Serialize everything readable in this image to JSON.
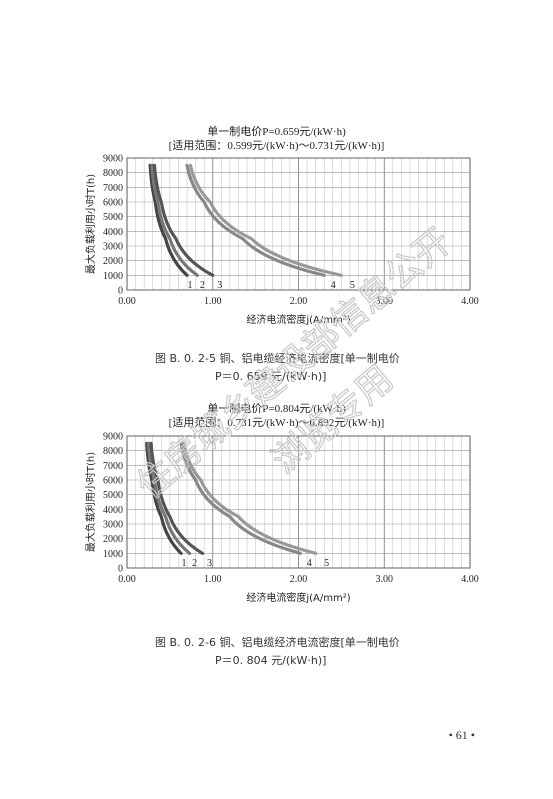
{
  "charts": [
    {
      "title_line1": "单一制电价P=0.659元/(kW·h)",
      "title_line2": "[适用范围：0.599元/(kW·h)～0.731元/(kW·h)]",
      "caption_line1": "图 B. 0. 2-5   铜、铝电缆经济电流密度[单一制电价",
      "caption_line2": "P＝0. 659 元/(kW·h)]"
    },
    {
      "title_line1": "单一制电价P=0.804元/(kW·h)",
      "title_line2": "[适用范围：0.731元/(kW·h)～0.892元/(kW·h)]",
      "caption_line1": "图 B. 0. 2-6   铜、铝电缆经济电流密度[单一制电价",
      "caption_line2": "P＝0. 804 元/(kW·h)]"
    }
  ],
  "chart_data": [
    {
      "type": "line",
      "title": "单一制电价P=0.659元/(kW·h)",
      "subtitle": "[适用范围：0.599元/(kW·h)～0.731元/(kW·h)]",
      "xlabel": "经济电流密度j(A/mm²)",
      "ylabel": "最大负载利用小时T(h)",
      "xlim": [
        0,
        4
      ],
      "ylim": [
        0,
        9000
      ],
      "x_ticks": [
        "0.00",
        "1.00",
        "2.00",
        "3.00",
        "4.00"
      ],
      "y_ticks": [
        "0",
        "1000",
        "2000",
        "3000",
        "4000",
        "5000",
        "6000",
        "7000",
        "8000",
        "9000"
      ],
      "grid": true,
      "series": [
        {
          "name": "1",
          "color": "#444444",
          "x": [
            0.27,
            0.33,
            0.45,
            0.7
          ],
          "y": [
            8500,
            6000,
            3500,
            1000
          ]
        },
        {
          "name": "2",
          "color": "#777777",
          "x": [
            0.29,
            0.36,
            0.5,
            0.82
          ],
          "y": [
            8500,
            6000,
            3500,
            1000
          ]
        },
        {
          "name": "3",
          "color": "#555555",
          "x": [
            0.32,
            0.4,
            0.57,
            1.0
          ],
          "y": [
            8500,
            6000,
            3500,
            1000
          ]
        },
        {
          "name": "4",
          "color": "#888888",
          "x": [
            0.7,
            0.9,
            1.35,
            2.3
          ],
          "y": [
            8500,
            6000,
            3500,
            1000
          ]
        },
        {
          "name": "5",
          "color": "#999999",
          "x": [
            0.74,
            0.97,
            1.45,
            2.5
          ],
          "y": [
            8500,
            6000,
            3500,
            1000
          ]
        }
      ]
    },
    {
      "type": "line",
      "title": "单一制电价P=0.804元/(kW·h)",
      "subtitle": "[适用范围：0.731元/(kW·h)～0.892元/(kW·h)]",
      "xlabel": "经济电流密度j(A/mm²)",
      "ylabel": "最大负载利用小时T(h)",
      "xlim": [
        0,
        4
      ],
      "ylim": [
        0,
        9000
      ],
      "x_ticks": [
        "0.00",
        "1.00",
        "2.00",
        "3.00",
        "4.00"
      ],
      "y_ticks": [
        "0",
        "1000",
        "2000",
        "3000",
        "4000",
        "5000",
        "6000",
        "7000",
        "8000",
        "9000"
      ],
      "grid": true,
      "series": [
        {
          "name": "1",
          "color": "#444444",
          "x": [
            0.23,
            0.29,
            0.4,
            0.63
          ],
          "y": [
            8500,
            6000,
            3500,
            1000
          ]
        },
        {
          "name": "2",
          "color": "#777777",
          "x": [
            0.25,
            0.32,
            0.45,
            0.73
          ],
          "y": [
            8500,
            6000,
            3500,
            1000
          ]
        },
        {
          "name": "3",
          "color": "#555555",
          "x": [
            0.28,
            0.36,
            0.5,
            0.88
          ],
          "y": [
            8500,
            6000,
            3500,
            1000
          ]
        },
        {
          "name": "4",
          "color": "#888888",
          "x": [
            0.63,
            0.8,
            1.2,
            2.02
          ],
          "y": [
            8500,
            6000,
            3500,
            1000
          ]
        },
        {
          "name": "5",
          "color": "#999999",
          "x": [
            0.66,
            0.86,
            1.3,
            2.2
          ],
          "y": [
            8500,
            6000,
            3500,
            1000
          ]
        }
      ]
    }
  ],
  "page_number": "• 61 •",
  "watermark": {
    "text": "住房城乡建设部信息公开",
    "text2": "浏览专用"
  }
}
